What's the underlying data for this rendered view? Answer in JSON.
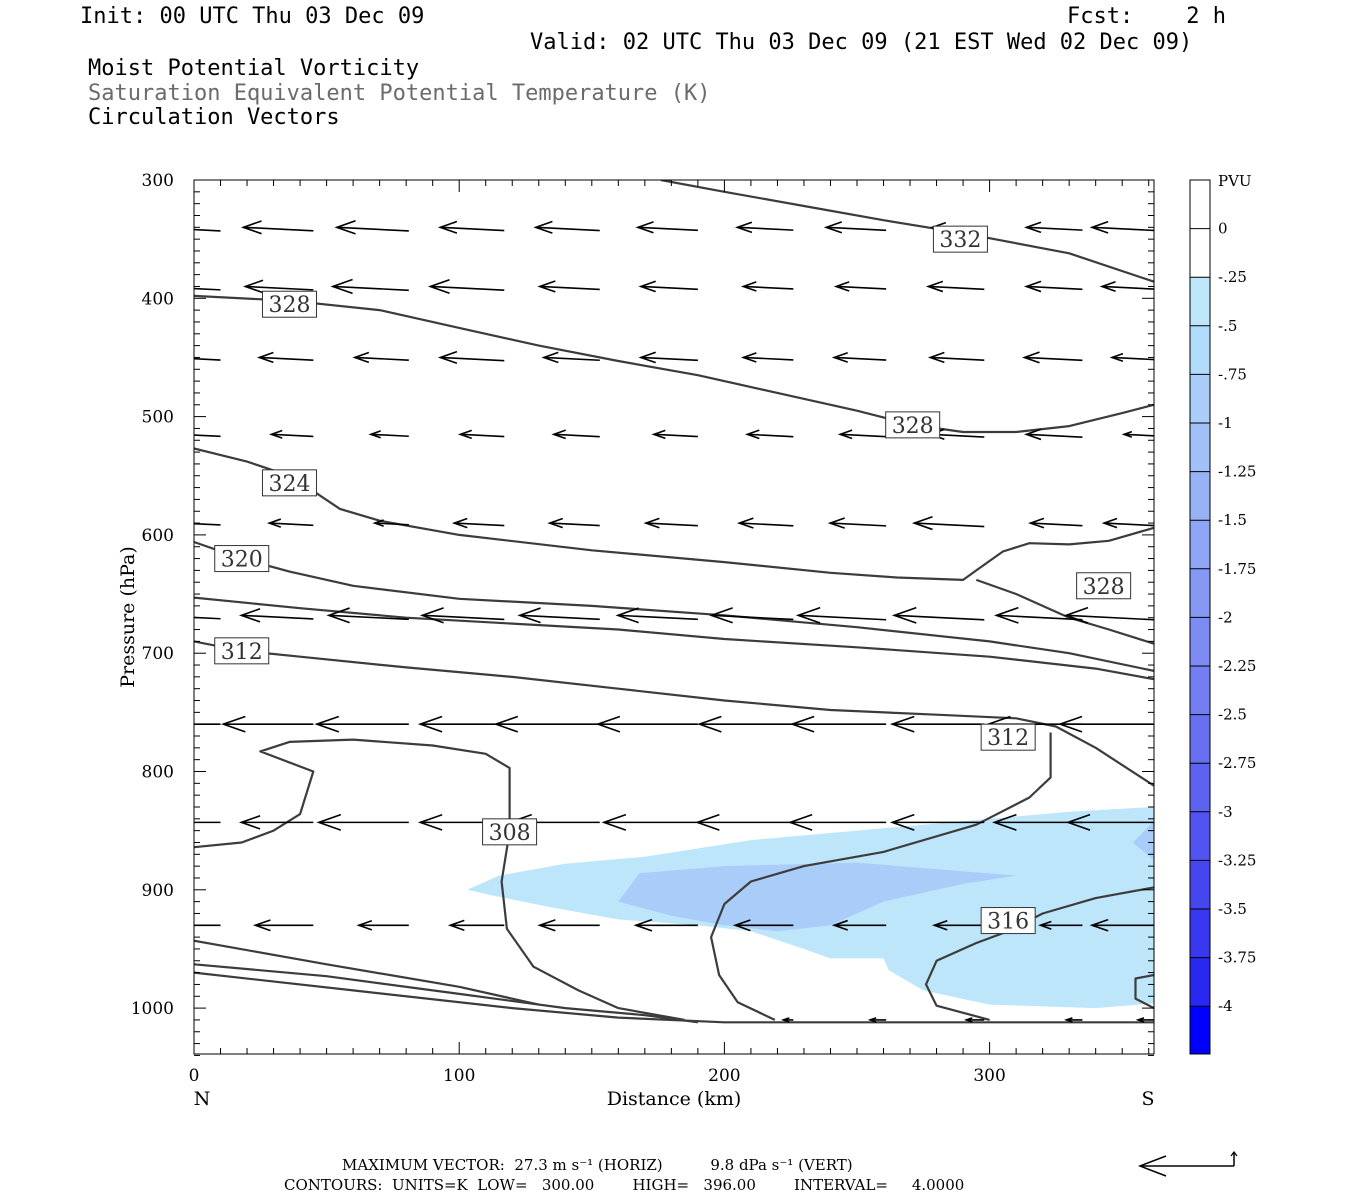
{
  "header": {
    "init": "Init: 00 UTC Thu 03 Dec 09",
    "fcst": "Fcst:    2 h",
    "valid": "Valid: 02 UTC Thu 03 Dec 09 (21 EST Wed 02 Dec 09)",
    "line1": "Moist Potential Vorticity",
    "line2": "Saturation Equivalent Potential Temperature (K)",
    "line3": "Circulation Vectors"
  },
  "footer": {
    "max_vector": "MAXIMUM VECTOR:  27.3 m s⁻¹ (HORIZ)          9.8 dPa s⁻¹ (VERT)",
    "contours": "CONTOURS:  UNITS=K  LOW=   300.00        HIGH=   396.00        INTERVAL=     4.0000"
  },
  "colors": {
    "contour": "#3c3c3c",
    "axis": "#000000",
    "pv_light": "#bde6fb",
    "pv_mid": "#a9cdf8"
  },
  "chart_data": {
    "type": "cross-section",
    "xlabel": "Distance (km)",
    "ylabel": "Pressure (hPa)",
    "xlim": [
      0,
      362
    ],
    "ylim": [
      1040,
      300
    ],
    "x_ticks": [
      "0",
      "100",
      "200",
      "300"
    ],
    "y_ticks": [
      "300",
      "400",
      "500",
      "600",
      "700",
      "800",
      "900",
      "1000"
    ],
    "x_end_labels": {
      "left": "N",
      "right": "S"
    },
    "colorbar": {
      "unit": "PVU",
      "labels": [
        "0",
        "-.25",
        "-.5",
        "-.75",
        "-1",
        "-1.25",
        "-1.5",
        "-1.75",
        "-2",
        "-2.25",
        "-2.5",
        "-2.75",
        "-3",
        "-3.25",
        "-3.5",
        "-3.75",
        "-4"
      ],
      "colors": [
        "#ffffff",
        "#ffffff",
        "#bde6fb",
        "#b0dbfa",
        "#a9cdf8",
        "#a0c0f7",
        "#97b3f6",
        "#8ea6f5",
        "#8599f4",
        "#7c8cf3",
        "#727ef2",
        "#6870f2",
        "#5d62f1",
        "#5254f1",
        "#4646f1",
        "#3838f1",
        "#2828f1",
        "#0000ff"
      ]
    },
    "contour_labels": [
      {
        "text": "332",
        "x": 289,
        "p": 350
      },
      {
        "text": "328",
        "x": 36,
        "p": 405
      },
      {
        "text": "328",
        "x": 271,
        "p": 507
      },
      {
        "text": "328",
        "x": 343,
        "p": 643
      },
      {
        "text": "324",
        "x": 36,
        "p": 556
      },
      {
        "text": "320",
        "x": 18,
        "p": 620
      },
      {
        "text": "312",
        "x": 18,
        "p": 698
      },
      {
        "text": "312",
        "x": 307,
        "p": 771
      },
      {
        "text": "308",
        "x": 119,
        "p": 851
      },
      {
        "text": "316",
        "x": 307,
        "p": 926
      }
    ],
    "contours": [
      {
        "name": "332",
        "pts": [
          [
            176,
            300
          ],
          [
            200,
            310
          ],
          [
            230,
            322
          ],
          [
            260,
            334
          ],
          [
            290,
            345
          ],
          [
            330,
            362
          ],
          [
            362,
            386
          ]
        ]
      },
      {
        "name": "328-upper",
        "pts": [
          [
            0,
            398
          ],
          [
            36,
            402
          ],
          [
            70,
            410
          ],
          [
            100,
            425
          ],
          [
            130,
            440
          ],
          [
            160,
            453
          ],
          [
            190,
            465
          ],
          [
            220,
            480
          ],
          [
            250,
            495
          ],
          [
            271,
            507
          ],
          [
            290,
            513
          ],
          [
            310,
            513
          ],
          [
            330,
            508
          ],
          [
            350,
            497
          ],
          [
            362,
            490
          ]
        ]
      },
      {
        "name": "324",
        "pts": [
          [
            0,
            527
          ],
          [
            20,
            538
          ],
          [
            36,
            550
          ],
          [
            45,
            563
          ],
          [
            55,
            578
          ],
          [
            70,
            588
          ],
          [
            100,
            600
          ],
          [
            150,
            613
          ],
          [
            200,
            623
          ],
          [
            240,
            632
          ],
          [
            265,
            636
          ],
          [
            290,
            638
          ],
          [
            295,
            630
          ],
          [
            305,
            614
          ],
          [
            315,
            607
          ],
          [
            330,
            608
          ],
          [
            345,
            605
          ],
          [
            362,
            594
          ]
        ]
      },
      {
        "name": "328-lower",
        "pts": [
          [
            295,
            638
          ],
          [
            310,
            650
          ],
          [
            330,
            670
          ],
          [
            345,
            680
          ],
          [
            362,
            692
          ]
        ]
      },
      {
        "name": "320",
        "pts": [
          [
            0,
            606
          ],
          [
            18,
            620
          ],
          [
            36,
            631
          ],
          [
            60,
            643
          ],
          [
            100,
            654
          ],
          [
            150,
            660
          ],
          [
            200,
            668
          ],
          [
            250,
            678
          ],
          [
            300,
            690
          ],
          [
            330,
            700
          ],
          [
            362,
            715
          ]
        ]
      },
      {
        "name": "316",
        "pts": [
          [
            0,
            653
          ],
          [
            40,
            662
          ],
          [
            80,
            670
          ],
          [
            120,
            675
          ],
          [
            160,
            680
          ],
          [
            200,
            688
          ],
          [
            250,
            695
          ],
          [
            300,
            703
          ],
          [
            340,
            713
          ],
          [
            362,
            722
          ]
        ]
      },
      {
        "name": "312",
        "pts": [
          [
            0,
            690
          ],
          [
            18,
            698
          ],
          [
            40,
            703
          ],
          [
            80,
            712
          ],
          [
            120,
            720
          ],
          [
            160,
            730
          ],
          [
            200,
            740
          ],
          [
            240,
            748
          ],
          [
            280,
            752
          ],
          [
            310,
            755
          ],
          [
            325,
            762
          ],
          [
            340,
            780
          ],
          [
            362,
            812
          ]
        ]
      },
      {
        "name": "308-mid",
        "pts": [
          [
            0,
            864
          ],
          [
            18,
            860
          ],
          [
            30,
            850
          ],
          [
            40,
            836
          ],
          [
            45,
            800
          ],
          [
            25,
            783
          ],
          [
            36,
            775
          ],
          [
            60,
            773
          ],
          [
            90,
            778
          ],
          [
            110,
            785
          ],
          [
            119,
            797
          ],
          [
            119,
            851
          ],
          [
            116,
            893
          ],
          [
            118,
            933
          ],
          [
            128,
            965
          ],
          [
            145,
            985
          ],
          [
            160,
            1000
          ],
          [
            185,
            1010
          ]
        ]
      },
      {
        "name": "308-right",
        "pts": [
          [
            219,
            1010
          ],
          [
            205,
            995
          ],
          [
            198,
            972
          ],
          [
            195,
            940
          ],
          [
            200,
            912
          ],
          [
            210,
            893
          ],
          [
            230,
            880
          ],
          [
            260,
            868
          ],
          [
            295,
            845
          ],
          [
            315,
            822
          ],
          [
            323,
            805
          ],
          [
            323,
            767
          ]
        ]
      },
      {
        "name": "316-low",
        "pts": [
          [
            300,
            1010
          ],
          [
            280,
            998
          ],
          [
            276,
            980
          ],
          [
            280,
            960
          ],
          [
            295,
            945
          ],
          [
            307,
            935
          ],
          [
            320,
            920
          ],
          [
            340,
            907
          ],
          [
            362,
            898
          ]
        ]
      },
      {
        "name": "ground-1",
        "pts": [
          [
            0,
            943
          ],
          [
            50,
            963
          ],
          [
            100,
            982
          ],
          [
            130,
            997
          ]
        ]
      },
      {
        "name": "ground-2",
        "pts": [
          [
            0,
            963
          ],
          [
            50,
            973
          ],
          [
            100,
            988
          ],
          [
            140,
            1000
          ],
          [
            170,
            1006
          ],
          [
            190,
            1012
          ]
        ]
      },
      {
        "name": "ground-3",
        "pts": [
          [
            0,
            970
          ],
          [
            60,
            985
          ],
          [
            120,
            1000
          ],
          [
            160,
            1008
          ],
          [
            200,
            1012
          ],
          [
            362,
            1012
          ]
        ]
      },
      {
        "name": "right-corner",
        "pts": [
          [
            362,
            1000
          ],
          [
            355,
            992
          ],
          [
            355,
            975
          ],
          [
            362,
            972
          ]
        ]
      }
    ],
    "pv_regions": [
      {
        "level": "-.25",
        "color": "#bde6fb",
        "pts": [
          [
            103,
            900
          ],
          [
            115,
            888
          ],
          [
            140,
            878
          ],
          [
            170,
            872
          ],
          [
            210,
            858
          ],
          [
            250,
            850
          ],
          [
            290,
            842
          ],
          [
            330,
            834
          ],
          [
            362,
            830
          ],
          [
            362,
            996
          ],
          [
            340,
            1000
          ],
          [
            300,
            997
          ],
          [
            275,
            985
          ],
          [
            262,
            968
          ],
          [
            260,
            958
          ],
          [
            240,
            958
          ],
          [
            230,
            950
          ],
          [
            210,
            935
          ],
          [
            190,
            930
          ],
          [
            160,
            925
          ],
          [
            135,
            915
          ],
          [
            113,
            905
          ]
        ]
      },
      {
        "level": "-.75",
        "color": "#a9cdf8",
        "pts": [
          [
            160,
            910
          ],
          [
            168,
            886
          ],
          [
            200,
            880
          ],
          [
            250,
            877
          ],
          [
            310,
            888
          ],
          [
            290,
            895
          ],
          [
            260,
            910
          ],
          [
            240,
            930
          ],
          [
            220,
            935
          ],
          [
            200,
            930
          ],
          [
            180,
            922
          ]
        ]
      },
      {
        "level": "-.75",
        "color": "#a9cdf8",
        "pts": [
          [
            354,
            860
          ],
          [
            362,
            842
          ],
          [
            362,
            875
          ]
        ]
      }
    ],
    "vectors": {
      "p_levels": [
        340,
        390,
        450,
        515,
        590,
        668,
        760,
        843,
        930,
        1010
      ],
      "x_columns": [
        10,
        45,
        81,
        117,
        153,
        190,
        226,
        261,
        298,
        335,
        362
      ],
      "note": "arrows point toward the north (left); shaft length in px per cell",
      "lengths": [
        [
          72,
          70,
          72,
          64,
          64,
          60,
          56,
          60,
          52,
          56,
          62
        ],
        [
          68,
          68,
          76,
          74,
          60,
          57,
          50,
          50,
          56,
          56,
          52
        ],
        [
          52,
          54,
          54,
          64,
          56,
          57,
          50,
          52,
          54,
          58,
          42
        ],
        [
          40,
          42,
          38,
          44,
          46,
          44,
          46,
          46,
          54,
          56,
          30
        ],
        [
          38,
          44,
          34,
          50,
          50,
          52,
          54,
          56,
          70,
          52,
          50
        ],
        [
          68,
          72,
          80,
          82,
          80,
          80,
          82,
          88,
          90,
          86,
          88
        ],
        [
          88,
          90,
          92,
          84,
          104,
          100,
          94,
          94,
          92,
          94,
          94
        ],
        [
          74,
          72,
          90,
          84,
          90,
          94,
          96,
          96,
          92,
          88,
          86
        ],
        [
          60,
          58,
          50,
          54,
          60,
          62,
          58,
          52,
          50,
          42,
          62
        ],
        [
          0,
          0,
          0,
          0,
          0,
          0,
          10,
          16,
          18,
          16,
          16
        ]
      ]
    },
    "ref_arrow": {
      "horiz": "27.3 m s-1",
      "vert": "9.8 dPa s-1"
    }
  }
}
